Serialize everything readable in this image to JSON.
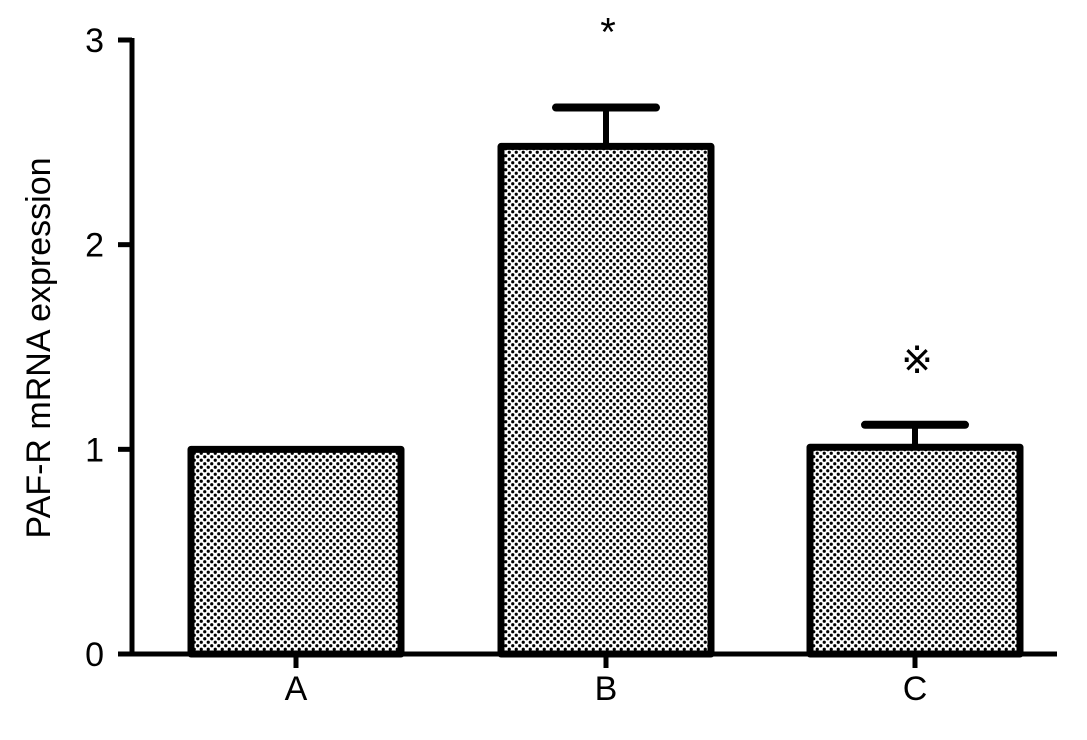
{
  "chart_data": {
    "type": "bar",
    "title": "",
    "xlabel": "",
    "ylabel": "PAF-R mRNA expression",
    "ylim": [
      0,
      3
    ],
    "yticks": [
      "0",
      "1",
      "2",
      "3"
    ],
    "categories": [
      "A",
      "B",
      "C"
    ],
    "values": [
      1.0,
      2.48,
      1.01
    ],
    "error_upper": [
      0,
      0.19,
      0.11
    ],
    "annotations": [
      "",
      "*",
      "※"
    ],
    "grid": false,
    "bar_fill": "dotted gray pattern",
    "colors": {
      "bar_edge": "#000000",
      "dots": "#000000",
      "background": "#ffffff"
    }
  }
}
